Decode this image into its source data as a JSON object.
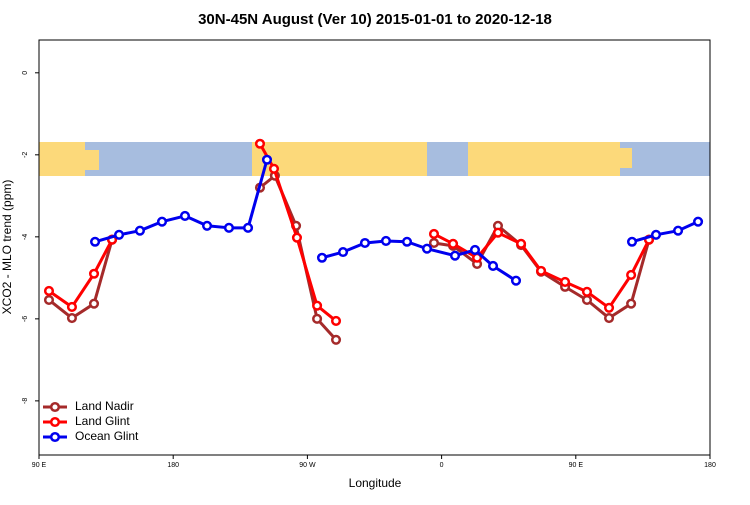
{
  "chart_data": {
    "type": "line",
    "title": "30N-45N August (Ver 10)   2015-01-01 to 2020-12-18",
    "xlabel": "Longitude",
    "ylabel": "XCO2 - MLO trend (ppm)",
    "xlim": [
      90,
      540
    ],
    "ylim": [
      -9.32,
      0.8
    ],
    "xticks": [
      {
        "value": 90,
        "label": "90 E"
      },
      180,
      {
        "value": 270,
        "label": "90 W"
      },
      {
        "value": 360,
        "label": "0"
      },
      {
        "value": 450,
        "label": "90 E"
      },
      {
        "value": 540,
        "label": "180"
      }
    ],
    "yticks": [
      0,
      -2,
      -4,
      -6,
      -8
    ],
    "legend": "bottom-left",
    "series": [
      {
        "name": "Land Nadir",
        "color": "#a52a2a",
        "x": [
          96.7,
          112.1,
          126.9,
          139.0,
          null,
          238.2,
          248.2,
          262.4,
          276.5,
          289.2,
          null,
          354.9,
          367.7,
          383.8,
          397.8,
          413.3,
          426.7,
          442.8,
          457.5,
          472.3,
          487.1,
          499.1
        ],
        "values": [
          -5.54,
          -5.98,
          -5.63,
          -4.07,
          null,
          -2.8,
          -2.51,
          -3.73,
          -6.0,
          -6.51,
          null,
          -4.15,
          -4.22,
          -4.66,
          -3.73,
          -4.2,
          -4.85,
          -5.22,
          -5.54,
          -5.98,
          -5.63,
          -4.07
        ]
      },
      {
        "name": "Land Glint",
        "color": "#ff0000",
        "x": [
          96.7,
          112.1,
          126.9,
          139.0,
          null,
          238.2,
          247.6,
          263.0,
          276.5,
          289.2,
          null,
          354.9,
          367.7,
          383.8,
          397.8,
          413.3,
          426.7,
          442.8,
          457.5,
          472.3,
          487.1,
          499.1
        ],
        "values": [
          -5.32,
          -5.71,
          -4.9,
          -4.07,
          null,
          -1.73,
          -2.34,
          -4.02,
          -5.68,
          -6.05,
          null,
          -3.93,
          -4.17,
          -4.51,
          -3.9,
          -4.17,
          -4.83,
          -5.1,
          -5.34,
          -5.73,
          -4.93,
          -4.07
        ]
      },
      {
        "name": "Ocean Glint",
        "color": "#0000ee",
        "x": [
          127.6,
          143.7,
          157.7,
          172.5,
          187.9,
          202.7,
          217.4,
          230.2,
          242.9,
          null,
          279.8,
          293.9,
          308.6,
          322.7,
          336.8,
          350.2,
          369.0,
          382.4,
          394.5,
          409.9,
          null,
          487.7,
          503.8,
          518.6,
          532.0
        ],
        "values": [
          -4.12,
          -3.95,
          -3.85,
          -3.63,
          -3.49,
          -3.73,
          -3.78,
          -3.78,
          -2.12,
          null,
          -4.51,
          -4.37,
          -4.15,
          -4.1,
          -4.12,
          -4.29,
          -4.46,
          -4.32,
          -4.71,
          -5.07,
          null,
          -4.12,
          -3.95,
          -3.85,
          -3.63
        ]
      }
    ]
  }
}
